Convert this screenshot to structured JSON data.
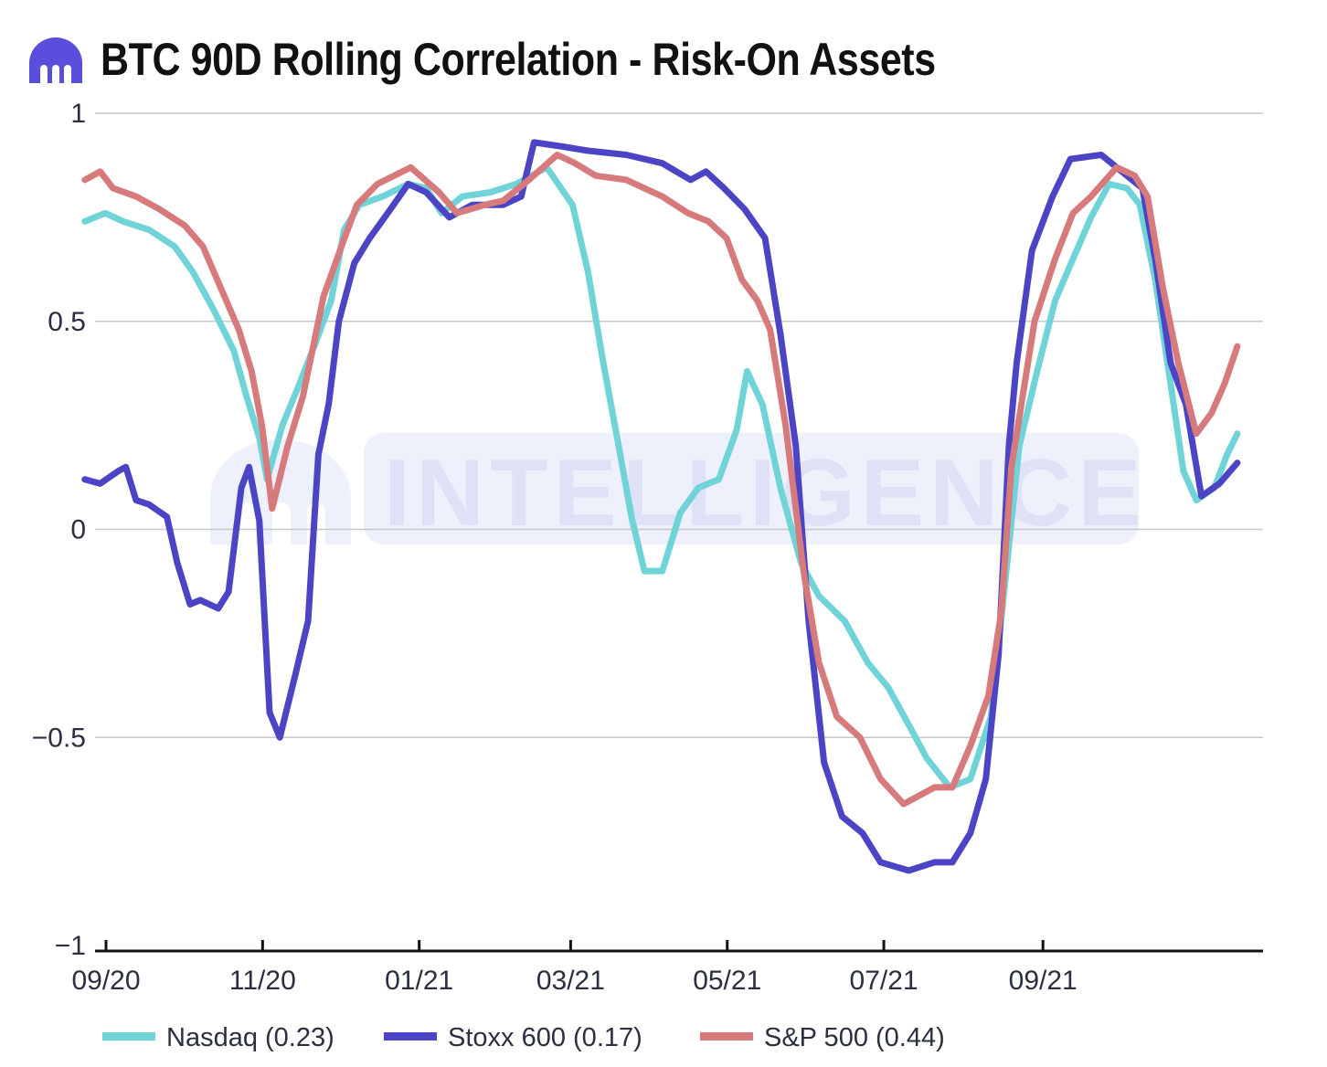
{
  "title": "BTC 90D Rolling Correlation - Risk-On Assets",
  "watermark": "INTELLIGENCE",
  "colors": {
    "nasdaq": "#6fd3d8",
    "stoxx": "#4b45c6",
    "sp500": "#d77a7c",
    "grid": "#c8c8c8",
    "axis": "#111111",
    "brand": "#5a4fdc"
  },
  "chart_data": {
    "type": "line",
    "title": "BTC 90D Rolling Correlation - Risk-On Assets",
    "xlabel": "",
    "ylabel": "",
    "ylim": [
      -1,
      1
    ],
    "xlim": [
      "2020-09-01",
      "2021-11-30"
    ],
    "yticks": [
      {
        "value": 1,
        "label": "1"
      },
      {
        "value": 0.5,
        "label": "0.5"
      },
      {
        "value": 0,
        "label": "0"
      },
      {
        "value": -0.5,
        "label": "−0.5"
      },
      {
        "value": -1,
        "label": "−1"
      }
    ],
    "xticks": [
      {
        "date": "2020-09-01",
        "label": "09/20"
      },
      {
        "date": "2020-11-01",
        "label": "11/20"
      },
      {
        "date": "2021-01-01",
        "label": "01/21"
      },
      {
        "date": "2021-03-01",
        "label": "03/21"
      },
      {
        "date": "2021-05-01",
        "label": "05/21"
      },
      {
        "date": "2021-07-01",
        "label": "07/21"
      },
      {
        "date": "2021-09-01",
        "label": "09/21"
      }
    ],
    "grid": true,
    "legend_position": "bottom",
    "series": [
      {
        "name": "Nasdaq (0.23)",
        "color": "#6fd3d8",
        "points": [
          [
            "2020-08-28",
            0.74
          ],
          [
            "2020-09-05",
            0.76
          ],
          [
            "2020-09-12",
            0.74
          ],
          [
            "2020-09-22",
            0.72
          ],
          [
            "2020-10-02",
            0.68
          ],
          [
            "2020-10-09",
            0.62
          ],
          [
            "2020-10-17",
            0.53
          ],
          [
            "2020-10-25",
            0.43
          ],
          [
            "2020-10-30",
            0.32
          ],
          [
            "2020-11-04",
            0.22
          ],
          [
            "2020-11-07",
            0.12
          ],
          [
            "2020-11-13",
            0.25
          ],
          [
            "2020-11-19",
            0.34
          ],
          [
            "2020-11-26",
            0.45
          ],
          [
            "2020-12-02",
            0.55
          ],
          [
            "2020-12-07",
            0.72
          ],
          [
            "2020-12-13",
            0.78
          ],
          [
            "2020-12-22",
            0.8
          ],
          [
            "2021-01-01",
            0.83
          ],
          [
            "2021-01-08",
            0.82
          ],
          [
            "2021-01-14",
            0.76
          ],
          [
            "2021-01-22",
            0.8
          ],
          [
            "2021-02-02",
            0.81
          ],
          [
            "2021-02-12",
            0.83
          ],
          [
            "2021-02-24",
            0.87
          ],
          [
            "2021-03-06",
            0.78
          ],
          [
            "2021-03-12",
            0.62
          ],
          [
            "2021-03-18",
            0.4
          ],
          [
            "2021-03-24",
            0.2
          ],
          [
            "2021-03-29",
            0.03
          ],
          [
            "2021-04-03",
            -0.1
          ],
          [
            "2021-04-10",
            -0.1
          ],
          [
            "2021-04-17",
            0.04
          ],
          [
            "2021-04-24",
            0.1
          ],
          [
            "2021-05-02",
            0.12
          ],
          [
            "2021-05-09",
            0.24
          ],
          [
            "2021-05-13",
            0.38
          ],
          [
            "2021-05-19",
            0.3
          ],
          [
            "2021-05-26",
            0.1
          ],
          [
            "2021-06-03",
            -0.08
          ],
          [
            "2021-06-10",
            -0.16
          ],
          [
            "2021-06-20",
            -0.22
          ],
          [
            "2021-06-29",
            -0.32
          ],
          [
            "2021-07-07",
            -0.38
          ],
          [
            "2021-07-15",
            -0.47
          ],
          [
            "2021-07-22",
            -0.55
          ],
          [
            "2021-07-31",
            -0.62
          ],
          [
            "2021-08-08",
            -0.6
          ],
          [
            "2021-08-16",
            -0.45
          ],
          [
            "2021-08-22",
            -0.1
          ],
          [
            "2021-08-27",
            0.2
          ],
          [
            "2021-09-03",
            0.38
          ],
          [
            "2021-09-10",
            0.55
          ],
          [
            "2021-09-17",
            0.65
          ],
          [
            "2021-09-24",
            0.75
          ],
          [
            "2021-10-01",
            0.83
          ],
          [
            "2021-10-08",
            0.82
          ],
          [
            "2021-10-13",
            0.78
          ],
          [
            "2021-10-19",
            0.6
          ],
          [
            "2021-10-25",
            0.35
          ],
          [
            "2021-10-30",
            0.14
          ],
          [
            "2021-11-04",
            0.07
          ],
          [
            "2021-11-11",
            0.1
          ],
          [
            "2021-11-16",
            0.18
          ],
          [
            "2021-11-20",
            0.23
          ]
        ]
      },
      {
        "name": "Stoxx 600 (0.17)",
        "color": "#4b45c6",
        "points": [
          [
            "2020-08-28",
            0.12
          ],
          [
            "2020-09-03",
            0.11
          ],
          [
            "2020-09-10",
            0.14
          ],
          [
            "2020-09-13",
            0.15
          ],
          [
            "2020-09-17",
            0.07
          ],
          [
            "2020-09-22",
            0.06
          ],
          [
            "2020-09-29",
            0.03
          ],
          [
            "2020-10-03",
            -0.08
          ],
          [
            "2020-10-08",
            -0.18
          ],
          [
            "2020-10-12",
            -0.17
          ],
          [
            "2020-10-19",
            -0.19
          ],
          [
            "2020-10-23",
            -0.15
          ],
          [
            "2020-10-28",
            0.1
          ],
          [
            "2020-10-31",
            0.15
          ],
          [
            "2020-11-04",
            0.02
          ],
          [
            "2020-11-08",
            -0.44
          ],
          [
            "2020-11-12",
            -0.5
          ],
          [
            "2020-11-18",
            -0.35
          ],
          [
            "2020-11-23",
            -0.22
          ],
          [
            "2020-11-27",
            0.18
          ],
          [
            "2020-12-01",
            0.3
          ],
          [
            "2020-12-05",
            0.5
          ],
          [
            "2020-12-11",
            0.64
          ],
          [
            "2020-12-17",
            0.7
          ],
          [
            "2020-12-24",
            0.76
          ],
          [
            "2021-01-01",
            0.83
          ],
          [
            "2021-01-08",
            0.81
          ],
          [
            "2021-01-17",
            0.75
          ],
          [
            "2021-01-26",
            0.78
          ],
          [
            "2021-02-07",
            0.78
          ],
          [
            "2021-02-14",
            0.8
          ],
          [
            "2021-02-19",
            0.93
          ],
          [
            "2021-03-02",
            0.92
          ],
          [
            "2021-03-12",
            0.91
          ],
          [
            "2021-03-27",
            0.9
          ],
          [
            "2021-04-10",
            0.88
          ],
          [
            "2021-04-21",
            0.84
          ],
          [
            "2021-04-27",
            0.86
          ],
          [
            "2021-05-04",
            0.82
          ],
          [
            "2021-05-12",
            0.77
          ],
          [
            "2021-05-20",
            0.7
          ],
          [
            "2021-05-26",
            0.47
          ],
          [
            "2021-06-01",
            0.2
          ],
          [
            "2021-06-06",
            -0.22
          ],
          [
            "2021-06-12",
            -0.56
          ],
          [
            "2021-06-19",
            -0.69
          ],
          [
            "2021-06-27",
            -0.73
          ],
          [
            "2021-07-04",
            -0.8
          ],
          [
            "2021-07-15",
            -0.82
          ],
          [
            "2021-07-25",
            -0.8
          ],
          [
            "2021-08-01",
            -0.8
          ],
          [
            "2021-08-08",
            -0.73
          ],
          [
            "2021-08-14",
            -0.6
          ],
          [
            "2021-08-19",
            -0.3
          ],
          [
            "2021-08-23",
            0.2
          ],
          [
            "2021-08-26",
            0.4
          ],
          [
            "2021-09-01",
            0.67
          ],
          [
            "2021-09-09",
            0.8
          ],
          [
            "2021-09-16",
            0.89
          ],
          [
            "2021-09-28",
            0.9
          ],
          [
            "2021-10-08",
            0.85
          ],
          [
            "2021-10-14",
            0.82
          ],
          [
            "2021-10-19",
            0.65
          ],
          [
            "2021-10-25",
            0.4
          ],
          [
            "2021-10-31",
            0.3
          ],
          [
            "2021-11-06",
            0.08
          ],
          [
            "2021-11-13",
            0.11
          ],
          [
            "2021-11-20",
            0.16
          ]
        ]
      },
      {
        "name": "S&P 500 (0.44)",
        "color": "#d77a7c",
        "points": [
          [
            "2020-08-28",
            0.84
          ],
          [
            "2020-09-03",
            0.86
          ],
          [
            "2020-09-08",
            0.82
          ],
          [
            "2020-09-17",
            0.8
          ],
          [
            "2020-09-26",
            0.77
          ],
          [
            "2020-10-06",
            0.73
          ],
          [
            "2020-10-13",
            0.68
          ],
          [
            "2020-10-20",
            0.58
          ],
          [
            "2020-10-27",
            0.48
          ],
          [
            "2020-11-01",
            0.38
          ],
          [
            "2020-11-05",
            0.25
          ],
          [
            "2020-11-09",
            0.05
          ],
          [
            "2020-11-15",
            0.2
          ],
          [
            "2020-11-21",
            0.32
          ],
          [
            "2020-11-29",
            0.56
          ],
          [
            "2020-12-06",
            0.68
          ],
          [
            "2020-12-12",
            0.78
          ],
          [
            "2020-12-20",
            0.83
          ],
          [
            "2021-01-02",
            0.87
          ],
          [
            "2021-01-13",
            0.81
          ],
          [
            "2021-01-20",
            0.76
          ],
          [
            "2021-01-31",
            0.78
          ],
          [
            "2021-02-07",
            0.79
          ],
          [
            "2021-02-17",
            0.84
          ],
          [
            "2021-02-28",
            0.9
          ],
          [
            "2021-03-07",
            0.88
          ],
          [
            "2021-03-15",
            0.85
          ],
          [
            "2021-03-27",
            0.84
          ],
          [
            "2021-04-10",
            0.8
          ],
          [
            "2021-04-20",
            0.76
          ],
          [
            "2021-04-28",
            0.74
          ],
          [
            "2021-05-05",
            0.7
          ],
          [
            "2021-05-11",
            0.6
          ],
          [
            "2021-05-17",
            0.55
          ],
          [
            "2021-05-22",
            0.48
          ],
          [
            "2021-05-28",
            0.25
          ],
          [
            "2021-06-04",
            -0.1
          ],
          [
            "2021-06-10",
            -0.32
          ],
          [
            "2021-06-17",
            -0.45
          ],
          [
            "2021-06-26",
            -0.5
          ],
          [
            "2021-07-04",
            -0.6
          ],
          [
            "2021-07-13",
            -0.66
          ],
          [
            "2021-07-25",
            -0.62
          ],
          [
            "2021-08-01",
            -0.62
          ],
          [
            "2021-08-08",
            -0.52
          ],
          [
            "2021-08-15",
            -0.4
          ],
          [
            "2021-08-20",
            -0.2
          ],
          [
            "2021-08-24",
            0.15
          ],
          [
            "2021-09-02",
            0.5
          ],
          [
            "2021-09-10",
            0.65
          ],
          [
            "2021-09-17",
            0.76
          ],
          [
            "2021-09-24",
            0.8
          ],
          [
            "2021-10-04",
            0.87
          ],
          [
            "2021-10-11",
            0.85
          ],
          [
            "2021-10-16",
            0.8
          ],
          [
            "2021-10-22",
            0.58
          ],
          [
            "2021-10-28",
            0.4
          ],
          [
            "2021-11-04",
            0.23
          ],
          [
            "2021-11-10",
            0.28
          ],
          [
            "2021-11-15",
            0.35
          ],
          [
            "2021-11-20",
            0.44
          ]
        ]
      }
    ]
  }
}
